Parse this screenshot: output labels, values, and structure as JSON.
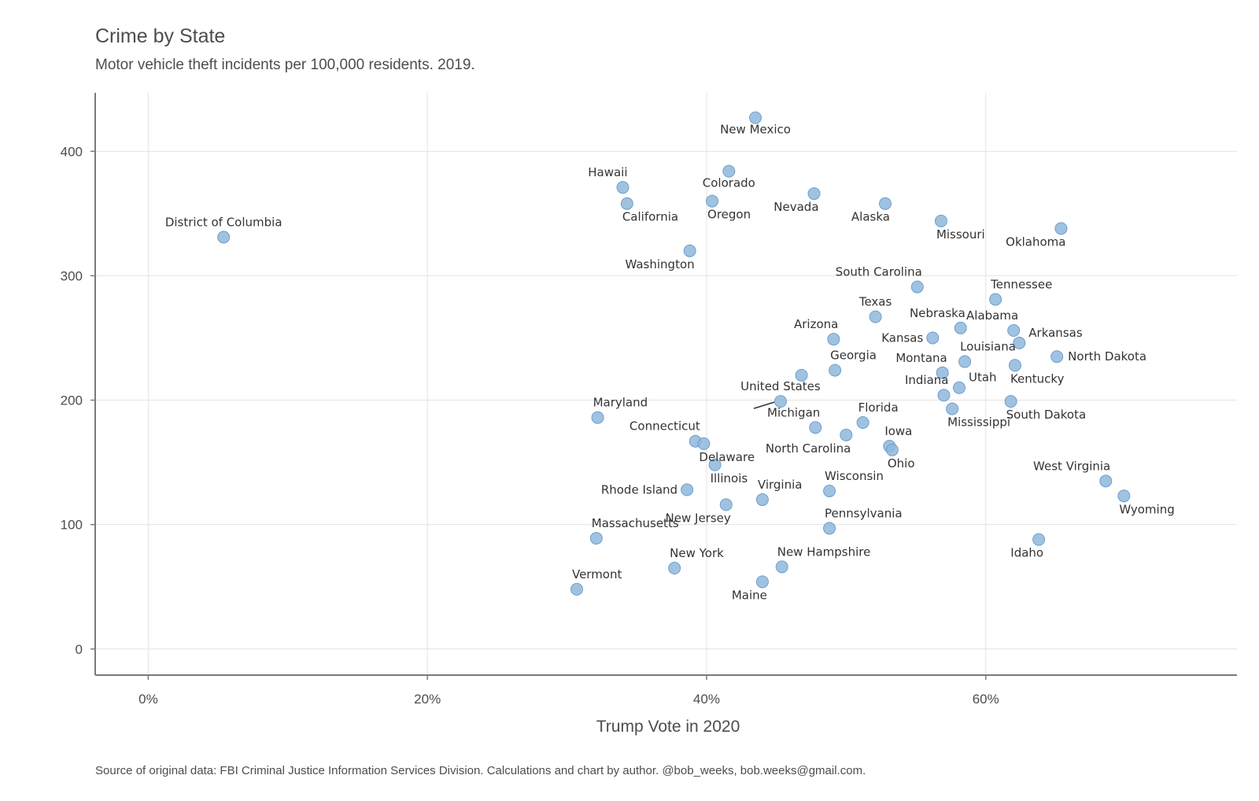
{
  "chart_data": {
    "type": "scatter",
    "title": "Crime by State",
    "subtitle": "Motor vehicle theft incidents per 100,000 residents. 2019.",
    "xlabel": "Trump Vote in 2020",
    "ylabel": "",
    "caption": "Source of original data: FBI Criminal Justice Information Services Division. Calculations and chart by author. @bob_weeks, bob.weeks@gmail.com.",
    "xlim": [
      -3.8,
      78
    ],
    "ylim": [
      -21,
      447
    ],
    "x_ticks": [
      0,
      20,
      40,
      60
    ],
    "x_tick_labels": [
      "0%",
      "20%",
      "40%",
      "60%"
    ],
    "y_ticks": [
      0,
      100,
      200,
      300,
      400
    ],
    "y_tick_labels": [
      "0",
      "100",
      "200",
      "300",
      "400"
    ],
    "grid": true,
    "legend": "none",
    "colors": {
      "point": "#8fb7dc",
      "point_stroke": "#6e9fcc",
      "grid": "#e3e3e3",
      "axis": "#7a7a7a"
    },
    "points": [
      {
        "label": "New Mexico",
        "x": 43.5,
        "y": 427,
        "lpos": "below"
      },
      {
        "label": "Colorado",
        "x": 41.6,
        "y": 384,
        "lpos": "below"
      },
      {
        "label": "Hawaii",
        "x": 34.0,
        "y": 371,
        "lpos": "above-left"
      },
      {
        "label": "California",
        "x": 34.3,
        "y": 358,
        "lpos": "below-right"
      },
      {
        "label": "Oregon",
        "x": 40.4,
        "y": 360,
        "lpos": "below-right"
      },
      {
        "label": "Nevada",
        "x": 47.7,
        "y": 366,
        "lpos": "below-left"
      },
      {
        "label": "Alaska",
        "x": 52.8,
        "y": 358,
        "lpos": "below-left"
      },
      {
        "label": "Missouri",
        "x": 56.8,
        "y": 344,
        "lpos": "below-right"
      },
      {
        "label": "Oklahoma",
        "x": 65.4,
        "y": 338,
        "lpos": "below-left"
      },
      {
        "label": "District of Columbia",
        "x": 5.4,
        "y": 331,
        "lpos": "above"
      },
      {
        "label": "Washington",
        "x": 38.8,
        "y": 320,
        "lpos": "below-left"
      },
      {
        "label": "South Carolina",
        "x": 55.1,
        "y": 291,
        "lpos": "above-left"
      },
      {
        "label": "Tennessee",
        "x": 60.7,
        "y": 281,
        "lpos": "above-right"
      },
      {
        "label": "Texas",
        "x": 52.1,
        "y": 267,
        "lpos": "above"
      },
      {
        "label": "Nebraska",
        "x": 58.2,
        "y": 258,
        "lpos": "above-left"
      },
      {
        "label": "Alabama",
        "x": 62.0,
        "y": 256,
        "lpos": "above-left"
      },
      {
        "label": "Arkansas",
        "x": 62.4,
        "y": 246,
        "lpos": "right-up"
      },
      {
        "label": "Arizona",
        "x": 49.1,
        "y": 249,
        "lpos": "above-left"
      },
      {
        "label": "Kansas",
        "x": 56.2,
        "y": 250,
        "lpos": "left"
      },
      {
        "label": "North Dakota",
        "x": 65.1,
        "y": 235,
        "lpos": "right"
      },
      {
        "label": "Louisiana",
        "x": 58.5,
        "y": 231,
        "lpos": "above-right"
      },
      {
        "label": "Kentucky",
        "x": 62.1,
        "y": 228,
        "lpos": "below-right"
      },
      {
        "label": "Georgia",
        "x": 49.2,
        "y": 224,
        "lpos": "above-right"
      },
      {
        "label": "Montana",
        "x": 56.9,
        "y": 222,
        "lpos": "above-left"
      },
      {
        "label": "Utah",
        "x": 58.1,
        "y": 210,
        "lpos": "right-up"
      },
      {
        "label": "",
        "x": 46.8,
        "y": 220,
        "lpos": "none"
      },
      {
        "label": "Indiana",
        "x": 57.0,
        "y": 204,
        "lpos": "above-left"
      },
      {
        "label": "United States",
        "x": 45.3,
        "y": 199,
        "lpos": "above"
      },
      {
        "label": "South Dakota",
        "x": 61.8,
        "y": 199,
        "lpos": "below-right"
      },
      {
        "label": "Mississippi",
        "x": 57.6,
        "y": 193,
        "lpos": "below-right"
      },
      {
        "label": "Maryland",
        "x": 32.2,
        "y": 186,
        "lpos": "above-right"
      },
      {
        "label": "Michigan",
        "x": 47.8,
        "y": 178,
        "lpos": "above-left"
      },
      {
        "label": "Florida",
        "x": 51.2,
        "y": 182,
        "lpos": "above-right"
      },
      {
        "label": "North Carolina",
        "x": 50.0,
        "y": 172,
        "lpos": "below-left"
      },
      {
        "label": "Iowa",
        "x": 53.1,
        "y": 163,
        "lpos": "above-right"
      },
      {
        "label": "Ohio",
        "x": 53.3,
        "y": 160,
        "lpos": "below-right"
      },
      {
        "label": "Connecticut",
        "x": 39.2,
        "y": 167,
        "lpos": "above-left"
      },
      {
        "label": "",
        "x": 39.8,
        "y": 165,
        "lpos": "none"
      },
      {
        "label": "Delaware",
        "x": 39.8,
        "y": 165,
        "lpos": "below-right"
      },
      {
        "label": "Illinois",
        "x": 40.6,
        "y": 148,
        "lpos": "below-right"
      },
      {
        "label": "Rhode Island",
        "x": 38.6,
        "y": 128,
        "lpos": "left"
      },
      {
        "label": "Wisconsin",
        "x": 48.8,
        "y": 127,
        "lpos": "above-right"
      },
      {
        "label": "Virginia",
        "x": 44.0,
        "y": 120,
        "lpos": "above-right"
      },
      {
        "label": "New Jersey",
        "x": 41.4,
        "y": 116,
        "lpos": "below-left"
      },
      {
        "label": "Pennsylvania",
        "x": 48.8,
        "y": 97,
        "lpos": "above-right"
      },
      {
        "label": "Massachusetts",
        "x": 32.1,
        "y": 89,
        "lpos": "above-right"
      },
      {
        "label": "Idaho",
        "x": 63.8,
        "y": 88,
        "lpos": "below-left"
      },
      {
        "label": "West Virginia",
        "x": 68.6,
        "y": 135,
        "lpos": "above-left"
      },
      {
        "label": "Wyoming",
        "x": 69.9,
        "y": 123,
        "lpos": "below-right"
      },
      {
        "label": "New York",
        "x": 37.7,
        "y": 65,
        "lpos": "above-right"
      },
      {
        "label": "New Hampshire",
        "x": 45.4,
        "y": 66,
        "lpos": "above-right"
      },
      {
        "label": "Maine",
        "x": 44.0,
        "y": 54,
        "lpos": "below-left"
      },
      {
        "label": "Vermont",
        "x": 30.7,
        "y": 48,
        "lpos": "above-right"
      }
    ]
  }
}
